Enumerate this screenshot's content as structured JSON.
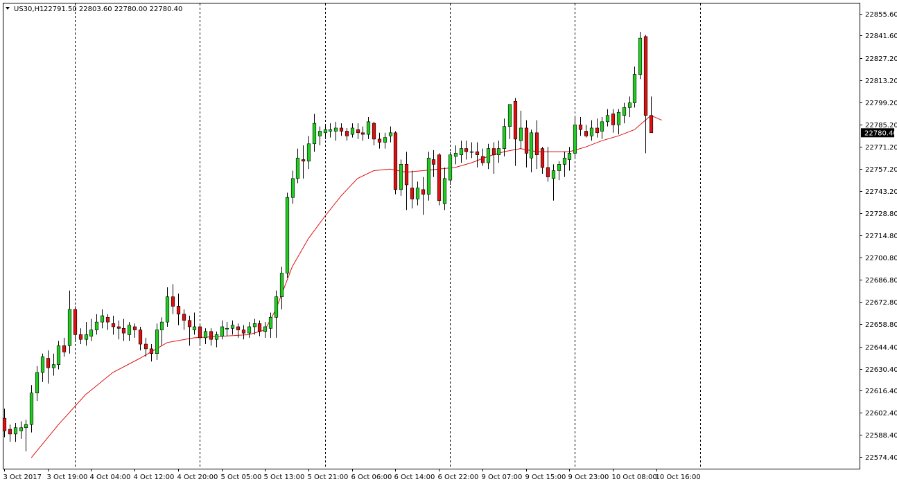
{
  "header": {
    "symbol_label": "US30,H1",
    "ohlc_text": "22791.50 22803.60 22780.00 22780.40"
  },
  "current_price_label": "22780.40",
  "colors": {
    "background": "#ffffff",
    "grid_border": "#000000",
    "bull_body": "#22cc22",
    "bear_body": "#dd1111",
    "wick": "#000000",
    "moving_average": "#dd1111",
    "price_tag_bg": "#000000",
    "price_tag_text": "#ffffff"
  },
  "chart_data": {
    "type": "candlestick",
    "symbol": "US30",
    "timeframe": "H1",
    "ylim": [
      22567.0,
      22862.0
    ],
    "y_ticks": [
      "22855.60",
      "22841.60",
      "22827.20",
      "22813.20",
      "22799.20",
      "22785.20",
      "22771.20",
      "22757.20",
      "22743.20",
      "22728.80",
      "22714.80",
      "22700.80",
      "22686.80",
      "22672.80",
      "22658.80",
      "22644.40",
      "22630.40",
      "22616.40",
      "22602.40",
      "22588.40",
      "22574.40"
    ],
    "x_labels": [
      {
        "index": 0,
        "label": "3 Oct 2017"
      },
      {
        "index": 8,
        "label": "3 Oct 19:00"
      },
      {
        "index": 16,
        "label": "4 Oct 04:00"
      },
      {
        "index": 24,
        "label": "4 Oct 12:00"
      },
      {
        "index": 32,
        "label": "4 Oct 20:00"
      },
      {
        "index": 40,
        "label": "5 Oct 05:00"
      },
      {
        "index": 48,
        "label": "5 Oct 13:00"
      },
      {
        "index": 56,
        "label": "5 Oct 21:00"
      },
      {
        "index": 64,
        "label": "6 Oct 06:00"
      },
      {
        "index": 72,
        "label": "6 Oct 14:00"
      },
      {
        "index": 80,
        "label": "6 Oct 22:00"
      },
      {
        "index": 88,
        "label": "9 Oct 07:00"
      },
      {
        "index": 96,
        "label": "9 Oct 15:00"
      },
      {
        "index": 104,
        "label": "9 Oct 23:00"
      },
      {
        "index": 112,
        "label": "10 Oct 08:00"
      },
      {
        "index": 120,
        "label": "10 Oct 16:00"
      }
    ],
    "day_separators": [
      13,
      36,
      59,
      82,
      105,
      128
    ],
    "candles": [
      [
        22599,
        22605,
        22587,
        22591
      ],
      [
        22592,
        22595,
        22584,
        22589
      ],
      [
        22589,
        22596,
        22584,
        22593
      ],
      [
        22591,
        22597,
        22586,
        22593
      ],
      [
        22593,
        22598,
        22578,
        22595
      ],
      [
        22595,
        22620,
        22590,
        22615
      ],
      [
        22615,
        22632,
        22610,
        22628
      ],
      [
        22628,
        22640,
        22622,
        22638
      ],
      [
        22637,
        22642,
        22621,
        22631
      ],
      [
        22631,
        22640,
        22626,
        22633
      ],
      [
        22633,
        22648,
        22630,
        22645
      ],
      [
        22645,
        22650,
        22638,
        22641
      ],
      [
        22645,
        22680,
        22640,
        22668
      ],
      [
        22668,
        22670,
        22648,
        22652
      ],
      [
        22652,
        22656,
        22646,
        22649
      ],
      [
        22649,
        22660,
        22645,
        22652
      ],
      [
        22651,
        22662,
        22648,
        22655
      ],
      [
        22655,
        22665,
        22652,
        22660
      ],
      [
        22660,
        22668,
        22656,
        22664
      ],
      [
        22663,
        22665,
        22655,
        22660
      ],
      [
        22659,
        22664,
        22652,
        22657
      ],
      [
        22657,
        22661,
        22649,
        22656
      ],
      [
        22656,
        22662,
        22648,
        22653
      ],
      [
        22652,
        22660,
        22648,
        22658
      ],
      [
        22657,
        22659,
        22650,
        22655
      ],
      [
        22655,
        22657,
        22642,
        22646
      ],
      [
        22646,
        22650,
        22638,
        22643
      ],
      [
        22643,
        22646,
        22635,
        22640
      ],
      [
        22640,
        22659,
        22636,
        22655
      ],
      [
        22655,
        22663,
        22645,
        22660
      ],
      [
        22660,
        22682,
        22657,
        22676
      ],
      [
        22676,
        22684,
        22665,
        22670
      ],
      [
        22670,
        22678,
        22658,
        22665
      ],
      [
        22665,
        22668,
        22655,
        22661
      ],
      [
        22661,
        22664,
        22645,
        22657
      ],
      [
        22655,
        22666,
        22652,
        22657
      ],
      [
        22657,
        22659,
        22645,
        22650
      ],
      [
        22650,
        22656,
        22646,
        22654
      ],
      [
        22654,
        22656,
        22645,
        22649
      ],
      [
        22649,
        22654,
        22644,
        22652
      ],
      [
        22651,
        22661,
        22649,
        22657
      ],
      [
        22656,
        22660,
        22651,
        22656
      ],
      [
        22656,
        22661,
        22652,
        22658
      ],
      [
        22657,
        22659,
        22650,
        22655
      ],
      [
        22655,
        22658,
        22649,
        22653
      ],
      [
        22653,
        22660,
        22650,
        22657
      ],
      [
        22657,
        22662,
        22652,
        22659
      ],
      [
        22659,
        22661,
        22651,
        22654
      ],
      [
        22654,
        22660,
        22650,
        22657
      ],
      [
        22656,
        22666,
        22650,
        22663
      ],
      [
        22663,
        22680,
        22650,
        22676
      ],
      [
        22676,
        22695,
        22668,
        22691
      ],
      [
        22691,
        22742,
        22688,
        22739
      ],
      [
        22739,
        22756,
        22735,
        22751
      ],
      [
        22751,
        22770,
        22748,
        22764
      ],
      [
        22763,
        22772,
        22751,
        22762
      ],
      [
        22762,
        22778,
        22757,
        22773
      ],
      [
        22773,
        22792,
        22768,
        22786
      ],
      [
        22778,
        22784,
        22772,
        22781
      ],
      [
        22780,
        22785,
        22776,
        22782
      ],
      [
        22781,
        22786,
        22777,
        22782
      ],
      [
        22781,
        22787,
        22775,
        22783
      ],
      [
        22783,
        22786,
        22778,
        22781
      ],
      [
        22781,
        22783,
        22775,
        22778
      ],
      [
        22779,
        22786,
        22777,
        22783
      ],
      [
        22782,
        22786,
        22776,
        22780
      ],
      [
        22780,
        22784,
        22775,
        22779
      ],
      [
        22779,
        22790,
        22776,
        22787
      ],
      [
        22786,
        22787,
        22772,
        22776
      ],
      [
        22776,
        22780,
        22770,
        22774
      ],
      [
        22774,
        22780,
        22770,
        22777
      ],
      [
        22778,
        22784,
        22774,
        22780
      ],
      [
        22780,
        22781,
        22741,
        22744
      ],
      [
        22744,
        22763,
        22740,
        22760
      ],
      [
        22760,
        22768,
        22731,
        22747
      ],
      [
        22745,
        22756,
        22732,
        22738
      ],
      [
        22738,
        22749,
        22734,
        22745
      ],
      [
        22744,
        22752,
        22728,
        22741
      ],
      [
        22741,
        22768,
        22737,
        22764
      ],
      [
        22763,
        22769,
        22752,
        22760
      ],
      [
        22766,
        22767,
        22734,
        22737
      ],
      [
        22735,
        22758,
        22731,
        22751
      ],
      [
        22750,
        22768,
        22747,
        22766
      ],
      [
        22765,
        22772,
        22760,
        22767
      ],
      [
        22766,
        22775,
        22761,
        22770
      ],
      [
        22770,
        22775,
        22763,
        22768
      ],
      [
        22768,
        22774,
        22764,
        22768
      ],
      [
        22768,
        22774,
        22758,
        22766
      ],
      [
        22765,
        22770,
        22759,
        22761
      ],
      [
        22761,
        22773,
        22757,
        22770
      ],
      [
        22770,
        22774,
        22754,
        22766
      ],
      [
        22766,
        22775,
        22761,
        22770
      ],
      [
        22770,
        22789,
        22765,
        22784
      ],
      [
        22784,
        22798,
        22776,
        22798
      ],
      [
        22800,
        22802,
        22759,
        22776
      ],
      [
        22775,
        22794,
        22770,
        22783
      ],
      [
        22783,
        22788,
        22758,
        22767
      ],
      [
        22764,
        22782,
        22755,
        22780
      ],
      [
        22780,
        22788,
        22757,
        22766
      ],
      [
        22770,
        22771,
        22754,
        22758
      ],
      [
        22758,
        22771,
        22749,
        22752
      ],
      [
        22751,
        22760,
        22737,
        22756
      ],
      [
        22756,
        22762,
        22750,
        22760
      ],
      [
        22760,
        22768,
        22752,
        22764
      ],
      [
        22763,
        22771,
        22756,
        22767
      ],
      [
        22767,
        22790,
        22764,
        22785
      ],
      [
        22785,
        22790,
        22778,
        22782
      ],
      [
        22781,
        22785,
        22777,
        22778
      ],
      [
        22778,
        22788,
        22775,
        22783
      ],
      [
        22783,
        22789,
        22777,
        22780
      ],
      [
        22781,
        22790,
        22776,
        22787
      ],
      [
        22787,
        22795,
        22784,
        22791
      ],
      [
        22792,
        22795,
        22780,
        22785
      ],
      [
        22785,
        22795,
        22779,
        22793
      ],
      [
        22791,
        22799,
        22786,
        22796
      ],
      [
        22796,
        22803,
        22790,
        22799
      ],
      [
        22799,
        22822,
        22796,
        22817
      ],
      [
        22817,
        22844,
        22814,
        22840
      ],
      [
        22841,
        22842,
        22767,
        22791
      ],
      [
        22791,
        22803,
        22780,
        22780
      ]
    ],
    "moving_average": [
      [
        5,
        22574
      ],
      [
        10,
        22595
      ],
      [
        15,
        22614
      ],
      [
        20,
        22628
      ],
      [
        25,
        22637
      ],
      [
        30,
        22647
      ],
      [
        35,
        22650
      ],
      [
        40,
        22651
      ],
      [
        45,
        22652
      ],
      [
        48,
        22655
      ],
      [
        50,
        22668
      ],
      [
        53,
        22695
      ],
      [
        56,
        22713
      ],
      [
        59,
        22727
      ],
      [
        62,
        22740
      ],
      [
        65,
        22751
      ],
      [
        68,
        22756
      ],
      [
        71,
        22757
      ],
      [
        74,
        22755
      ],
      [
        77,
        22756
      ],
      [
        80,
        22757
      ],
      [
        83,
        22758
      ],
      [
        86,
        22761
      ],
      [
        89,
        22765
      ],
      [
        92,
        22768
      ],
      [
        95,
        22770
      ],
      [
        98,
        22768
      ],
      [
        101,
        22768
      ],
      [
        104,
        22768
      ],
      [
        107,
        22771
      ],
      [
        110,
        22775
      ],
      [
        113,
        22778
      ],
      [
        116,
        22782
      ],
      [
        119,
        22791
      ],
      [
        121,
        22788
      ]
    ]
  }
}
